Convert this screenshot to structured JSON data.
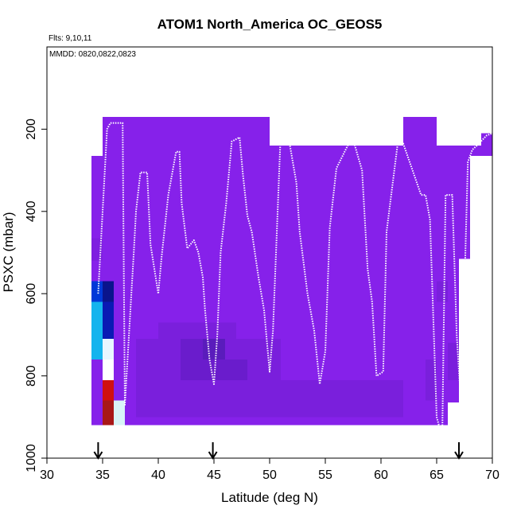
{
  "chart_data": {
    "type": "heatmap",
    "title": "ATOM1 North_America OC_GEOS5",
    "annotations": [
      "Flts: 9,10,11",
      "MMDD: 0820,0822,0823"
    ],
    "xlabel": "Latitude (deg N)",
    "ylabel": "PSXC (mbar)",
    "xlim": [
      30,
      70
    ],
    "ylim": [
      1000,
      0
    ],
    "x_ticks": [
      30,
      35,
      40,
      45,
      50,
      55,
      60,
      65,
      70
    ],
    "y_ticks": [
      200,
      400,
      600,
      800,
      1000
    ],
    "flight_markers_lat": [
      34.6,
      44.9,
      67.0
    ],
    "colors": {
      "background_field": "#8621ea",
      "flight_track": "#ffffff",
      "axis": "#000000"
    },
    "cells": [
      {
        "lat0": 35.0,
        "lat1": 65.0,
        "p0": 170,
        "p1": 920,
        "color": "#8621ea"
      },
      {
        "lat0": 34.0,
        "lat1": 35.0,
        "p0": 265,
        "p1": 920,
        "color": "#8621ea"
      },
      {
        "lat0": 65.0,
        "lat1": 69.0,
        "p0": 240,
        "p1": 965,
        "color": "#8621ea"
      },
      {
        "lat0": 69.0,
        "lat1": 70.0,
        "p0": 210,
        "p1": 265,
        "color": "#8621ea"
      },
      {
        "lat0": 50.0,
        "lat1": 62.0,
        "p0": 170,
        "p1": 240,
        "color": "#ffffff"
      },
      {
        "lat0": 68.0,
        "lat1": 70.0,
        "p0": 265,
        "p1": 1000,
        "color": "#ffffff"
      },
      {
        "lat0": 67.0,
        "lat1": 68.0,
        "p0": 515,
        "p1": 1000,
        "color": "#ffffff"
      },
      {
        "lat0": 66.0,
        "lat1": 67.0,
        "p0": 865,
        "p1": 1000,
        "color": "#ffffff"
      },
      {
        "lat0": 65.0,
        "lat1": 66.0,
        "p0": 920,
        "p1": 1000,
        "color": "#ffffff"
      },
      {
        "lat0": 64.0,
        "lat1": 65.0,
        "p0": 965,
        "p1": 1000,
        "color": "#ffffff"
      },
      {
        "lat0": 34.0,
        "lat1": 35.0,
        "p0": 465,
        "p1": 520,
        "color": "#7e1fe0"
      },
      {
        "lat0": 40.0,
        "lat1": 47.0,
        "p0": 670,
        "p1": 900,
        "color": "#7a1fdc"
      },
      {
        "lat0": 38.0,
        "lat1": 51.0,
        "p0": 710,
        "p1": 900,
        "color": "#7a1fdc"
      },
      {
        "lat0": 51.0,
        "lat1": 62.0,
        "p0": 810,
        "p1": 900,
        "color": "#7a1fdc"
      },
      {
        "lat0": 42.0,
        "lat1": 46.0,
        "p0": 710,
        "p1": 810,
        "color": "#6a1ccc"
      },
      {
        "lat0": 44.0,
        "lat1": 46.0,
        "p0": 710,
        "p1": 760,
        "color": "#5a1cbc"
      },
      {
        "lat0": 46.0,
        "lat1": 48.0,
        "p0": 760,
        "p1": 810,
        "color": "#6a1ccc"
      },
      {
        "lat0": 64.0,
        "lat1": 65.0,
        "p0": 760,
        "p1": 860,
        "color": "#7a1fdc"
      },
      {
        "lat0": 65.0,
        "lat1": 66.0,
        "p0": 570,
        "p1": 620,
        "color": "#7a1fdc"
      },
      {
        "lat0": 66.0,
        "lat1": 67.0,
        "p0": 720,
        "p1": 810,
        "color": "#7a1fdc"
      },
      {
        "lat0": 34.0,
        "lat1": 35.0,
        "p0": 570,
        "p1": 620,
        "color": "#0039d8"
      },
      {
        "lat0": 35.0,
        "lat1": 36.0,
        "p0": 570,
        "p1": 620,
        "color": "#0a148c"
      },
      {
        "lat0": 34.0,
        "lat1": 35.0,
        "p0": 620,
        "p1": 760,
        "color": "#14b4ee"
      },
      {
        "lat0": 35.0,
        "lat1": 36.0,
        "p0": 620,
        "p1": 710,
        "color": "#0a1ab4"
      },
      {
        "lat0": 35.0,
        "lat1": 36.0,
        "p0": 710,
        "p1": 760,
        "color": "#e8f6ff"
      },
      {
        "lat0": 35.0,
        "lat1": 36.0,
        "p0": 760,
        "p1": 810,
        "color": "#ffffff"
      },
      {
        "lat0": 35.0,
        "lat1": 36.0,
        "p0": 810,
        "p1": 860,
        "color": "#d01010"
      },
      {
        "lat0": 35.0,
        "lat1": 36.0,
        "p0": 860,
        "p1": 920,
        "color": "#a81818"
      },
      {
        "lat0": 36.0,
        "lat1": 37.0,
        "p0": 860,
        "p1": 920,
        "color": "#d8f4f8"
      }
    ],
    "flight_track": {
      "lat": [
        34.6,
        35.4,
        35.7,
        36.8,
        37.0,
        37.8,
        38.0,
        38.4,
        39.0,
        39.3,
        40.0,
        40.3,
        40.9,
        41.6,
        41.9,
        42.1,
        42.6,
        43.2,
        43.6,
        44.0,
        44.2,
        44.6,
        45.0,
        45.3,
        45.6,
        46.1,
        46.6,
        47.3,
        47.6,
        48.0,
        48.4,
        49.0,
        49.5,
        50.0,
        50.3,
        51.0,
        51.6,
        52.4,
        52.7,
        53.4,
        54.0,
        54.5,
        55.0,
        55.4,
        56.0,
        57.1,
        57.6,
        58.3,
        58.8,
        59.2,
        59.6,
        60.2,
        60.5,
        61.5,
        62.0,
        63.6,
        64.0,
        64.4,
        65.0,
        65.5,
        65.8,
        66.4,
        66.8,
        67.1,
        67.4,
        67.8,
        68.2,
        68.6,
        69.5,
        70.0
      ],
      "p": [
        600,
        200,
        185,
        185,
        870,
        500,
        400,
        305,
        305,
        480,
        600,
        510,
        360,
        255,
        255,
        380,
        490,
        470,
        500,
        560,
        640,
        760,
        820,
        700,
        500,
        380,
        230,
        220,
        310,
        410,
        450,
        560,
        640,
        790,
        690,
        205,
        205,
        330,
        450,
        600,
        690,
        820,
        740,
        440,
        295,
        235,
        235,
        300,
        540,
        620,
        800,
        790,
        450,
        235,
        235,
        360,
        360,
        420,
        900,
        950,
        360,
        360,
        700,
        830,
        680,
        280,
        250,
        240,
        215,
        210
      ]
    }
  }
}
